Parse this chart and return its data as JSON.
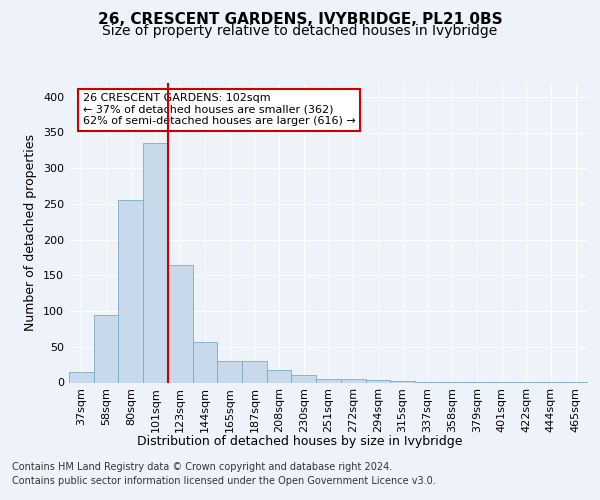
{
  "title": "26, CRESCENT GARDENS, IVYBRIDGE, PL21 0BS",
  "subtitle": "Size of property relative to detached houses in Ivybridge",
  "xlabel": "Distribution of detached houses by size in Ivybridge",
  "ylabel": "Number of detached properties",
  "categories": [
    "37sqm",
    "58sqm",
    "80sqm",
    "101sqm",
    "123sqm",
    "144sqm",
    "165sqm",
    "187sqm",
    "208sqm",
    "230sqm",
    "251sqm",
    "272sqm",
    "294sqm",
    "315sqm",
    "337sqm",
    "358sqm",
    "379sqm",
    "401sqm",
    "422sqm",
    "444sqm",
    "465sqm"
  ],
  "values": [
    15,
    95,
    255,
    335,
    165,
    57,
    30,
    30,
    17,
    10,
    5,
    5,
    3,
    2,
    1,
    1,
    1,
    1,
    1,
    1,
    1
  ],
  "bar_color": "#c8d9ec",
  "bar_edge_color": "#7aaac8",
  "red_line_x": 3.5,
  "annotation_text": "26 CRESCENT GARDENS: 102sqm\n← 37% of detached houses are smaller (362)\n62% of semi-detached houses are larger (616) →",
  "annotation_box_color": "#ffffff",
  "annotation_box_edge": "#cc0000",
  "ylim": [
    0,
    420
  ],
  "yticks": [
    0,
    50,
    100,
    150,
    200,
    250,
    300,
    350,
    400
  ],
  "footer1": "Contains HM Land Registry data © Crown copyright and database right 2024.",
  "footer2": "Contains public sector information licensed under the Open Government Licence v3.0.",
  "background_color": "#eef2f9",
  "grid_color": "#ffffff",
  "title_fontsize": 11,
  "subtitle_fontsize": 10,
  "label_fontsize": 9,
  "tick_fontsize": 8,
  "footer_fontsize": 7,
  "annotation_fontsize": 8
}
